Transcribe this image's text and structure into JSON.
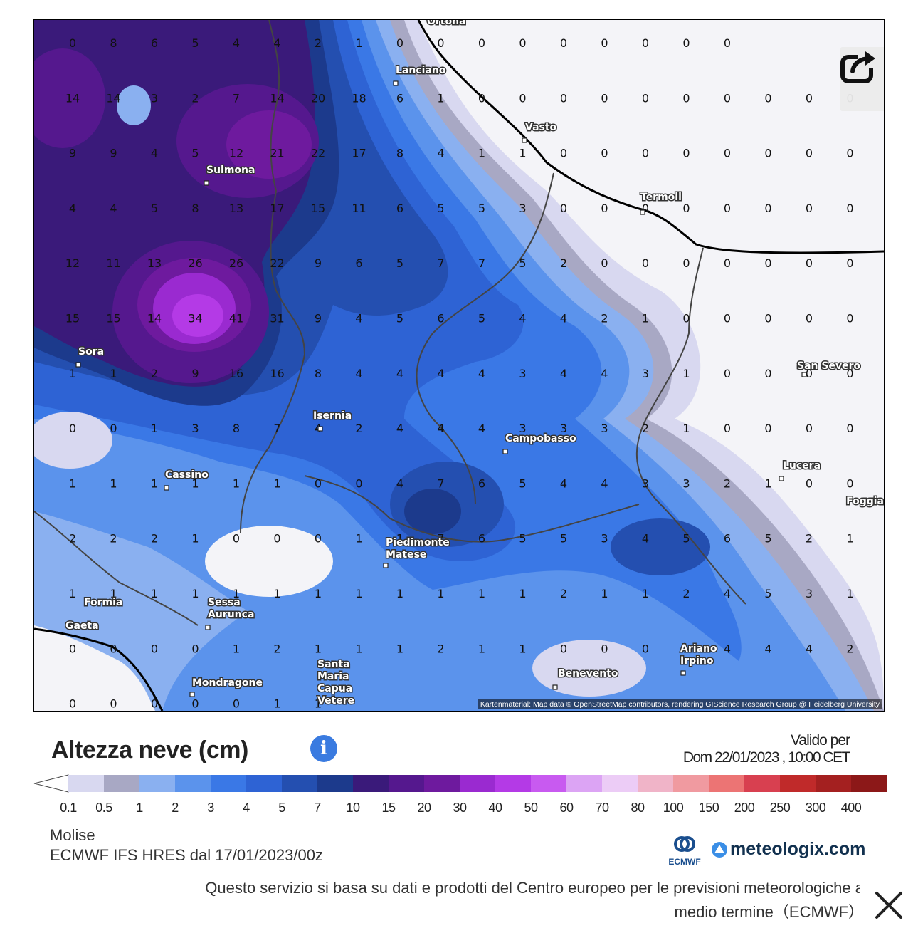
{
  "map": {
    "towns": [
      {
        "name": "Ortona"
      },
      {
        "name": "Lanciano"
      },
      {
        "name": "Vasto"
      },
      {
        "name": "Sulmona"
      },
      {
        "name": "Termoli"
      },
      {
        "name": "Sora"
      },
      {
        "name": "San Severo"
      },
      {
        "name": "Isernia"
      },
      {
        "name": "Campobasso"
      },
      {
        "name": "Cassino"
      },
      {
        "name": "Lucera"
      },
      {
        "name": "Foggia"
      },
      {
        "name": "Piedimonte Matese"
      },
      {
        "name": "Formia"
      },
      {
        "name": "Sessa Aurunca"
      },
      {
        "name": "Gaeta"
      },
      {
        "name": "Ariano Irpino"
      },
      {
        "name": "Santa Maria Capua Vetere"
      },
      {
        "name": "Benevento"
      },
      {
        "name": "Mondragone"
      }
    ],
    "grid_values": [
      [
        "0",
        "8",
        "6",
        "5",
        "4",
        "4",
        "2",
        "1",
        "0",
        "0",
        "0",
        "0",
        "0",
        "0",
        "0",
        "0",
        "0",
        "",
        "",
        ""
      ],
      [
        "14",
        "14",
        "3",
        "2",
        "7",
        "14",
        "20",
        "18",
        "6",
        "1",
        "0",
        "0",
        "0",
        "0",
        "0",
        "0",
        "0",
        "0",
        "0",
        "0"
      ],
      [
        "9",
        "9",
        "4",
        "5",
        "12",
        "21",
        "22",
        "17",
        "8",
        "4",
        "1",
        "1",
        "0",
        "0",
        "0",
        "0",
        "0",
        "0",
        "0",
        "0"
      ],
      [
        "4",
        "4",
        "5",
        "8",
        "13",
        "17",
        "15",
        "11",
        "6",
        "5",
        "5",
        "3",
        "0",
        "0",
        "0",
        "0",
        "0",
        "0",
        "0",
        "0"
      ],
      [
        "12",
        "11",
        "13",
        "26",
        "26",
        "22",
        "9",
        "6",
        "5",
        "7",
        "7",
        "5",
        "2",
        "0",
        "0",
        "0",
        "0",
        "0",
        "0",
        "0"
      ],
      [
        "15",
        "15",
        "14",
        "34",
        "41",
        "31",
        "9",
        "4",
        "5",
        "6",
        "5",
        "4",
        "4",
        "2",
        "1",
        "0",
        "0",
        "0",
        "0",
        "0"
      ],
      [
        "1",
        "1",
        "2",
        "9",
        "16",
        "16",
        "8",
        "4",
        "4",
        "4",
        "4",
        "3",
        "4",
        "4",
        "3",
        "1",
        "0",
        "0",
        "0",
        "0"
      ],
      [
        "0",
        "0",
        "1",
        "3",
        "8",
        "7",
        "4",
        "2",
        "4",
        "4",
        "4",
        "3",
        "3",
        "3",
        "2",
        "1",
        "0",
        "0",
        "0",
        "0"
      ],
      [
        "1",
        "1",
        "1",
        "1",
        "1",
        "1",
        "0",
        "0",
        "4",
        "7",
        "6",
        "5",
        "4",
        "4",
        "3",
        "3",
        "2",
        "1",
        "0",
        "0"
      ],
      [
        "2",
        "2",
        "2",
        "1",
        "0",
        "0",
        "0",
        "1",
        "1",
        "7",
        "6",
        "5",
        "5",
        "3",
        "4",
        "5",
        "6",
        "5",
        "2",
        "1"
      ],
      [
        "1",
        "1",
        "1",
        "1",
        "1",
        "1",
        "1",
        "1",
        "1",
        "1",
        "1",
        "1",
        "2",
        "1",
        "1",
        "2",
        "4",
        "5",
        "3",
        "1"
      ],
      [
        "0",
        "0",
        "0",
        "0",
        "1",
        "2",
        "1",
        "1",
        "1",
        "2",
        "1",
        "1",
        "0",
        "0",
        "0",
        "1",
        "4",
        "4",
        "4",
        "2"
      ],
      [
        "0",
        "0",
        "0",
        "0",
        "0",
        "1",
        "1",
        "",
        "",
        "",
        "",
        "",
        "",
        "",
        "",
        "",
        "",
        "",
        "",
        ""
      ]
    ],
    "colors": {
      "white": "#f4f4f8",
      "c01": "#d8d8f0",
      "c05": "#a8a8c4",
      "c1": "#8ab0f0",
      "c2": "#5b93ec",
      "c3": "#3a78e6",
      "c4": "#2e63d4",
      "c5": "#244fb0",
      "c7": "#1c3a8c",
      "c10": "#3a1a7a",
      "c15": "#55188e",
      "c20": "#6e1a9e",
      "c30": "#9a2ad0",
      "c40": "#b43ae6"
    },
    "attribution": "Kartenmaterial: Map data © OpenStreetMap contributors, rendering GIScience Research Group @ Heidelberg University",
    "share_icon": "share-icon"
  },
  "header": {
    "title": "Altezza neve (cm)",
    "info_icon": "info-icon",
    "valid_label": "Valido per",
    "valid_date": "Dom 22/01/2023 , 10:00 CET"
  },
  "legend": {
    "labels": [
      "0.1",
      "0.5",
      "1",
      "2",
      "3",
      "4",
      "5",
      "7",
      "10",
      "15",
      "20",
      "30",
      "40",
      "50",
      "60",
      "70",
      "80",
      "100",
      "150",
      "200",
      "250",
      "300",
      "400"
    ],
    "colors": [
      "#d8d8f0",
      "#a8a8c4",
      "#8ab0f0",
      "#5b93ec",
      "#3a78e6",
      "#2e63d4",
      "#244fb0",
      "#1c3a8c",
      "#3a1a7a",
      "#55188e",
      "#6e1a9e",
      "#9a2ad0",
      "#b43ae6",
      "#c85af0",
      "#dca4f4",
      "#ecccf6",
      "#f0b4c8",
      "#f09aa0",
      "#ec7474",
      "#d84050",
      "#c02a2a",
      "#a42020",
      "#8c1818"
    ]
  },
  "footer": {
    "region": "Molise",
    "model": "ECMWF IFS HRES dal 17/01/2023/00z",
    "ecmwf_logo_text": "ECMWF",
    "meteologix_logo_text": "meteologix.com",
    "disclaimer_line1": "Questo servizio si basa su dati e prodotti del Centro europeo per le previsioni meteorologiche a",
    "disclaimer_line2": "medio termine（ECMWF）",
    "close_icon": "close-icon"
  }
}
